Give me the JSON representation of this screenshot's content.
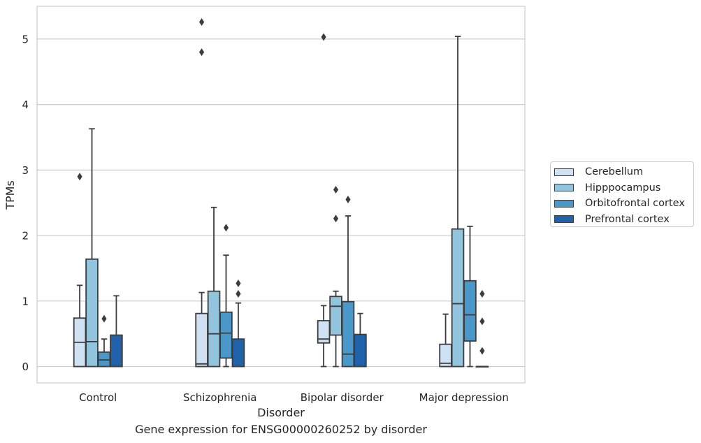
{
  "chart_data": {
    "type": "box",
    "xlabel": "Disorder",
    "ylabel": "TPMs",
    "caption": "Gene expression for ENSG00000260252 by disorder",
    "categories": [
      "Control",
      "Schizophrenia",
      "Bipolar disorder",
      "Major depression"
    ],
    "ylim": [
      -0.25,
      5.5
    ],
    "yticks": [
      0,
      1,
      2,
      3,
      4,
      5
    ],
    "grid": true,
    "legend_position": "right",
    "series": [
      {
        "name": "Cerebellum",
        "color": "#cfe1f2",
        "boxes": [
          {
            "whislo": 0,
            "q1": 0,
            "med": 0.37,
            "q3": 0.74,
            "whishi": 1.24,
            "fliers": [
              2.9
            ]
          },
          {
            "whislo": 0,
            "q1": 0,
            "med": 0.04,
            "q3": 0.81,
            "whishi": 1.13,
            "fliers": [
              5.26,
              4.8
            ]
          },
          {
            "whislo": 0,
            "q1": 0.36,
            "med": 0.42,
            "q3": 0.7,
            "whishi": 0.93,
            "fliers": [
              5.03
            ]
          },
          {
            "whislo": 0,
            "q1": 0,
            "med": 0.05,
            "q3": 0.34,
            "whishi": 0.8,
            "fliers": []
          }
        ]
      },
      {
        "name": "Hipppocampus",
        "color": "#93c4de",
        "boxes": [
          {
            "whislo": 0,
            "q1": 0,
            "med": 0.38,
            "q3": 1.64,
            "whishi": 3.63,
            "fliers": []
          },
          {
            "whislo": 0,
            "q1": 0,
            "med": 0.5,
            "q3": 1.15,
            "whishi": 2.43,
            "fliers": []
          },
          {
            "whislo": 0,
            "q1": 0.48,
            "med": 0.92,
            "q3": 1.07,
            "whishi": 1.15,
            "fliers": [
              2.7,
              2.26
            ]
          },
          {
            "whislo": 0,
            "q1": 0,
            "med": 0.96,
            "q3": 2.1,
            "whishi": 5.04,
            "fliers": []
          }
        ]
      },
      {
        "name": "Orbitofrontal cortex",
        "color": "#4a98c9",
        "boxes": [
          {
            "whislo": 0,
            "q1": 0.0,
            "med": 0.1,
            "q3": 0.22,
            "whishi": 0.42,
            "fliers": [
              0.73
            ]
          },
          {
            "whislo": 0,
            "q1": 0.13,
            "med": 0.51,
            "q3": 0.83,
            "whishi": 1.7,
            "fliers": [
              2.12
            ]
          },
          {
            "whislo": 0,
            "q1": 0,
            "med": 0.19,
            "q3": 0.99,
            "whishi": 2.3,
            "fliers": [
              2.55
            ]
          },
          {
            "whislo": 0,
            "q1": 0.39,
            "med": 0.79,
            "q3": 1.31,
            "whishi": 2.14,
            "fliers": []
          }
        ]
      },
      {
        "name": "Prefrontal cortex",
        "color": "#2163aa",
        "boxes": [
          {
            "whislo": 0,
            "q1": 0,
            "med": 0,
            "q3": 0.48,
            "whishi": 1.08,
            "fliers": []
          },
          {
            "whislo": 0,
            "q1": 0,
            "med": 0,
            "q3": 0.42,
            "whishi": 0.97,
            "fliers": [
              1.27,
              1.11
            ]
          },
          {
            "whislo": 0,
            "q1": 0,
            "med": 0,
            "q3": 0.49,
            "whishi": 0.81,
            "fliers": []
          },
          {
            "whislo": 0,
            "q1": 0,
            "med": 0,
            "q3": 0,
            "whishi": 0,
            "fliers": [
              1.11,
              0.69,
              0.24
            ]
          }
        ]
      }
    ]
  }
}
